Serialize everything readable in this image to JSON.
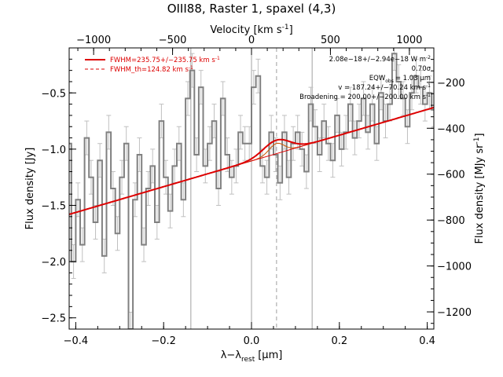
{
  "chart_data": {
    "type": "line",
    "title": "OIII88, Raster 1, spaxel (4,3)",
    "xlabel": "λ−λ",
    "xlabel_sub": "rest",
    "xlabel_unit": "[μm]",
    "ylabel": "Flux density [Jy]",
    "y2label": "Flux density [MJy sr",
    "y2label_sup": "-1",
    "y2label_end": "]",
    "x2label": "Velocity [km s",
    "x2label_sup": "-1",
    "x2label_end": "]",
    "xlim": [
      -0.415,
      0.415
    ],
    "ylim": [
      -2.6,
      -0.1
    ],
    "y2lim": [
      -1275,
      -50
    ],
    "x2lim": [
      -1155,
      1155
    ],
    "xticks": [
      -0.4,
      -0.2,
      0.0,
      0.2,
      0.4
    ],
    "xtick_labels": [
      "−0.4",
      "−0.2",
      "0.0",
      "0.2",
      "0.4"
    ],
    "yticks": [
      -2.5,
      -2.0,
      -1.5,
      -1.0,
      -0.5
    ],
    "ytick_labels": [
      "−2.5",
      "−2.0",
      "−1.5",
      "−1.0",
      "−0.5"
    ],
    "y2ticks": [
      -1200,
      -1000,
      -800,
      -600,
      -400,
      -200
    ],
    "y2tick_labels": [
      "−1200",
      "−1000",
      "−800",
      "−600",
      "−400",
      "−200"
    ],
    "x2ticks": [
      -1000,
      -500,
      0,
      500,
      1000
    ],
    "x2tick_labels": [
      "−1000",
      "−500",
      "0",
      "500",
      "1000"
    ],
    "vlines_solid": [
      -0.138,
      0.0,
      0.138
    ],
    "vlines_dashed": [
      0.057
    ],
    "continuum": {
      "x0": -0.415,
      "y0": -1.58,
      "x1": 0.415,
      "y1": -0.63
    },
    "line_fit": {
      "center": 0.057,
      "amplitude": 0.12,
      "sigma": 0.03
    },
    "line_fit_th": {
      "center": 0.057,
      "amplitude": 0.09,
      "sigma": 0.017
    },
    "spectrum": {
      "x": [
        -0.415,
        -0.405,
        -0.395,
        -0.385,
        -0.375,
        -0.365,
        -0.355,
        -0.345,
        -0.335,
        -0.325,
        -0.315,
        -0.305,
        -0.295,
        -0.285,
        -0.275,
        -0.265,
        -0.255,
        -0.245,
        -0.235,
        -0.225,
        -0.215,
        -0.205,
        -0.195,
        -0.185,
        -0.175,
        -0.165,
        -0.155,
        -0.145,
        -0.135,
        -0.125,
        -0.115,
        -0.105,
        -0.095,
        -0.085,
        -0.075,
        -0.065,
        -0.055,
        -0.045,
        -0.035,
        -0.025,
        -0.015,
        -0.005,
        0.005,
        0.015,
        0.025,
        0.035,
        0.045,
        0.055,
        0.065,
        0.075,
        0.085,
        0.095,
        0.105,
        0.115,
        0.125,
        0.135,
        0.145,
        0.155,
        0.165,
        0.175,
        0.185,
        0.195,
        0.205,
        0.215,
        0.225,
        0.235,
        0.245,
        0.255,
        0.265,
        0.275,
        0.285,
        0.295,
        0.305,
        0.315,
        0.325,
        0.335,
        0.345,
        0.355,
        0.365,
        0.375,
        0.385,
        0.395,
        0.405,
        0.415
      ],
      "y": [
        -0.95,
        -2.0,
        -1.45,
        -1.85,
        -0.9,
        -1.25,
        -1.65,
        -1.1,
        -1.95,
        -0.85,
        -1.35,
        -1.75,
        -1.25,
        -0.95,
        -2.6,
        -1.45,
        -1.05,
        -1.85,
        -1.35,
        -1.15,
        -1.65,
        -0.75,
        -1.25,
        -1.55,
        -1.15,
        -0.95,
        -1.45,
        -0.55,
        -0.3,
        -1.05,
        -0.45,
        -1.15,
        -0.95,
        -0.75,
        -1.35,
        -0.55,
        -1.05,
        -1.25,
        -1.15,
        -0.85,
        -0.95,
        -0.95,
        -0.45,
        -0.35,
        -1.15,
        -1.25,
        -0.85,
        -1.05,
        -1.3,
        -0.85,
        -1.25,
        -0.95,
        -0.85,
        -1.0,
        -1.2,
        -0.6,
        -0.8,
        -1.05,
        -0.75,
        -0.95,
        -1.1,
        -0.7,
        -1.0,
        -0.85,
        -0.6,
        -0.9,
        -0.75,
        -0.55,
        -0.85,
        -0.6,
        -0.95,
        -0.5,
        -0.75,
        -0.6,
        -0.15,
        -0.4,
        -0.55,
        -0.8,
        -0.5,
        -0.35,
        -0.45,
        -0.6,
        -0.5,
        -0.65
      ],
      "err": 0.15
    },
    "legend": [
      {
        "label": "FWHM=235.75+/−235.75 km s",
        "sup": "-1",
        "style": "solid",
        "color": "#dd0000"
      },
      {
        "label": "FWHM_th=124.82 km s",
        "sup": "-1",
        "style": "dashed",
        "color": "#dd0000"
      }
    ],
    "annotations": [
      "2.08e−18+/−2.94e−18 W m",
      "0.70σ",
      "EQW",
      "= 1.03 μm",
      "v = 187.24+/−70.24 km s",
      "Broadening = 200.00+/−200.00 km s"
    ],
    "annotation_parts": {
      "flux_sup": "-2",
      "eqw_sub": "obs",
      "kms_sup": "-1"
    },
    "colors": {
      "spectrum": "#808080",
      "errorbar": "#c0c0c0",
      "fit": "#dd0000",
      "fit_th": "#cc5500",
      "vline": "#a0a0a0"
    }
  }
}
